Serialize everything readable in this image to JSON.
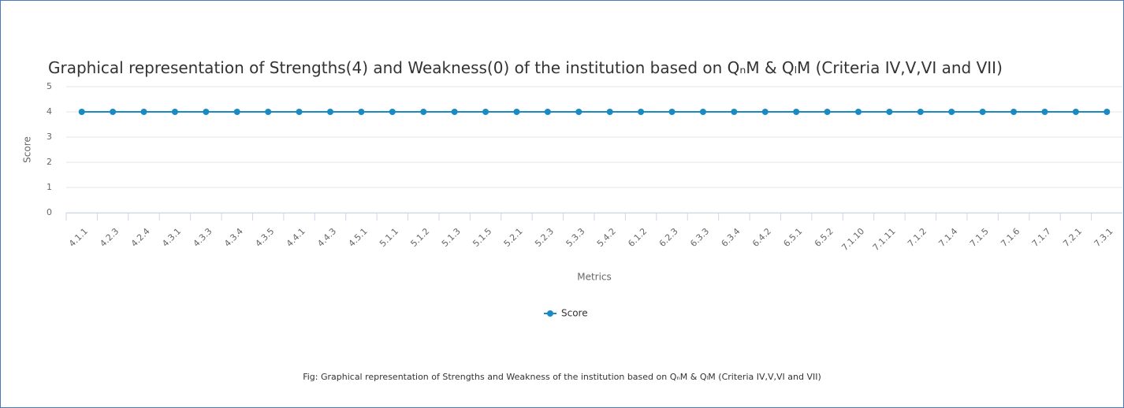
{
  "chart_data": {
    "type": "line",
    "title": "Graphical representation of Strengths(4) and Weakness(0) of the institution based on QₙM & QₗM (Criteria IV,V,VI and VII)",
    "caption": "Fig: Graphical representation of Strengths and Weakness of the institution based on QₙM & QₗM (Criteria IV,V,VI and VII)",
    "xlabel": "Metrics",
    "ylabel": "Score",
    "categories": [
      "4.1.1",
      "4.2.3",
      "4.2.4",
      "4.3.1",
      "4.3.3",
      "4.3.4",
      "4.3.5",
      "4.4.1",
      "4.4.3",
      "4.5.1",
      "5.1.1",
      "5.1.2",
      "5.1.3",
      "5.1.5",
      "5.2.1",
      "5.2.3",
      "5.3.3",
      "5.4.2",
      "6.1.2",
      "6.2.3",
      "6.3.3",
      "6.3.4",
      "6.4.2",
      "6.5.1",
      "6.5.2",
      "7.1.10",
      "7.1.11",
      "7.1.2",
      "7.1.4",
      "7.1.5",
      "7.1.6",
      "7.1.7",
      "7.2.1",
      "7.3.1"
    ],
    "series": [
      {
        "name": "Score",
        "color": "#1a8ac4",
        "values": [
          4,
          4,
          4,
          4,
          4,
          4,
          4,
          4,
          4,
          4,
          4,
          4,
          4,
          4,
          4,
          4,
          4,
          4,
          4,
          4,
          4,
          4,
          4,
          4,
          4,
          4,
          4,
          4,
          4,
          4,
          4,
          4,
          4,
          4
        ]
      }
    ],
    "ylim": [
      0,
      5
    ],
    "yticks": [
      0,
      1,
      2,
      3,
      4,
      5
    ],
    "grid": true,
    "legend": "bottom"
  }
}
